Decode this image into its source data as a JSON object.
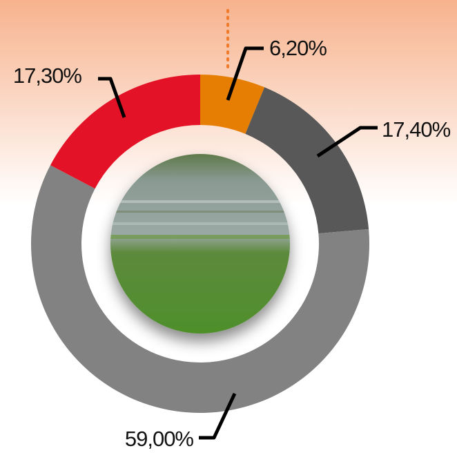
{
  "chart_data": {
    "type": "donut",
    "categories": [
      null,
      null,
      null,
      null
    ],
    "values": [
      6.2,
      17.4,
      59.0,
      17.3
    ],
    "value_labels": [
      "6,20%",
      "17,40%",
      "59,00%",
      "17,30%"
    ],
    "colors": [
      "#e67e04",
      "#585858",
      "#828282",
      "#e31226"
    ]
  }
}
